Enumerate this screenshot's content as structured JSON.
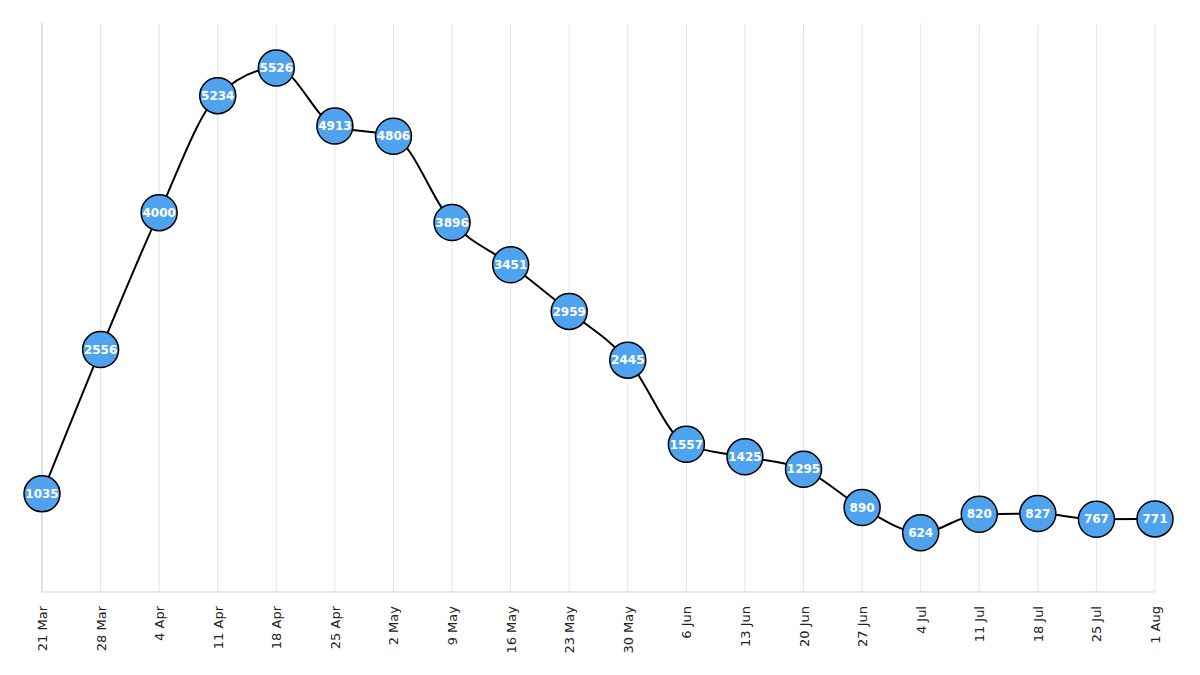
{
  "chart_data": {
    "type": "line",
    "categories": [
      "21 Mar",
      "28 Mar",
      "4 Apr",
      "11 Apr",
      "18 Apr",
      "25 Apr",
      "2 May",
      "9 May",
      "16 May",
      "23 May",
      "30 May",
      "6 Jun",
      "13 Jun",
      "20 Jun",
      "27 Jun",
      "4 Jul",
      "11 Jul",
      "18 Jul",
      "25 Jul",
      "1 Aug"
    ],
    "values": [
      1035,
      2556,
      4000,
      5234,
      5526,
      4913,
      4806,
      3896,
      3451,
      2959,
      2445,
      1557,
      1425,
      1295,
      890,
      624,
      820,
      827,
      767,
      771
    ],
    "color": "#4fa3ee",
    "marker": "circle",
    "data_labels": true,
    "grid": true,
    "tick_labels": "x",
    "ylim": [
      0,
      6000
    ]
  }
}
